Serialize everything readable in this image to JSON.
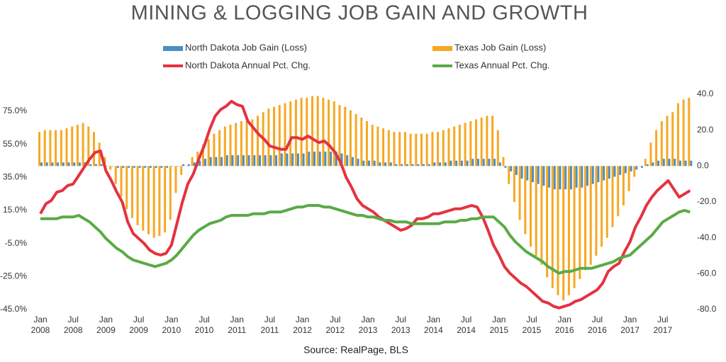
{
  "chart_data": {
    "type": "combo",
    "title": "MINING & LOGGING JOB GAIN AND GROWTH",
    "source": "Source: RealPage, BLS",
    "categories": [
      "Jan 2008",
      null,
      null,
      null,
      null,
      null,
      "Jul 2008",
      null,
      null,
      null,
      null,
      null,
      "Jan 2009",
      null,
      null,
      null,
      null,
      null,
      "Jul 2009",
      null,
      null,
      null,
      null,
      null,
      "Jan 2010",
      null,
      null,
      null,
      null,
      null,
      "Jul 2010",
      null,
      null,
      null,
      null,
      null,
      "Jan 2011",
      null,
      null,
      null,
      null,
      null,
      "Jul 2011",
      null,
      null,
      null,
      null,
      null,
      "Jan 2012",
      null,
      null,
      null,
      null,
      null,
      "Jul 2012",
      null,
      null,
      null,
      null,
      null,
      "Jan 2013",
      null,
      null,
      null,
      null,
      null,
      "Jul 2013",
      null,
      null,
      null,
      null,
      null,
      "Jan 2014",
      null,
      null,
      null,
      null,
      null,
      "Jul 2014",
      null,
      null,
      null,
      null,
      null,
      "Jan 2015",
      null,
      null,
      null,
      null,
      null,
      "Jul 2015",
      null,
      null,
      null,
      null,
      null,
      "Jan 2016",
      null,
      null,
      null,
      null,
      null,
      "Jul 2016",
      null,
      null,
      null,
      null,
      null,
      "Jan 2017",
      null,
      null,
      null,
      null,
      null,
      "Jul 2017",
      null,
      null,
      null,
      null,
      null
    ],
    "series": [
      {
        "name": "North Dakota Job Gain (Loss)",
        "type": "bar",
        "axis": "y2",
        "color": "#4a8fc4",
        "values": [
          2,
          2,
          2,
          2,
          2,
          2,
          2,
          2,
          2,
          1,
          1,
          1,
          0,
          0,
          -1,
          -1,
          -1,
          -1,
          -1,
          -1,
          -1,
          -1,
          -1,
          -1,
          0,
          0,
          1,
          1,
          2,
          3,
          4,
          5,
          5,
          5,
          6,
          6,
          6,
          6,
          6,
          6,
          6,
          6,
          6,
          6,
          7,
          7,
          7,
          7,
          7,
          8,
          8,
          8,
          8,
          8,
          8,
          7,
          6,
          5,
          4,
          3,
          3,
          3,
          2,
          2,
          2,
          1,
          1,
          1,
          1,
          1,
          1,
          1,
          2,
          2,
          2,
          3,
          3,
          3,
          3,
          4,
          4,
          4,
          4,
          4,
          2,
          -1,
          -3,
          -5,
          -7,
          -8,
          -9,
          -10,
          -11,
          -12,
          -13,
          -13,
          -13,
          -13,
          -12,
          -12,
          -11,
          -10,
          -9,
          -8,
          -7,
          -6,
          -5,
          -4,
          -3,
          -2,
          -1,
          1,
          2,
          3,
          4,
          4,
          4,
          3,
          3,
          3
        ]
      },
      {
        "name": "Texas Job Gain (Loss)",
        "type": "bar",
        "axis": "y2",
        "color": "#f6a823",
        "values": [
          19,
          20,
          20,
          20,
          20,
          21,
          22,
          23,
          24,
          22,
          19,
          13,
          5,
          -2,
          -10,
          -17,
          -24,
          -29,
          -33,
          -36,
          -38,
          -40,
          -39,
          -37,
          -30,
          -15,
          -5,
          0,
          5,
          8,
          12,
          15,
          18,
          20,
          22,
          23,
          24,
          25,
          25,
          26,
          28,
          30,
          32,
          33,
          34,
          35,
          36,
          37,
          38,
          38,
          39,
          39,
          38,
          37,
          36,
          34,
          33,
          31,
          29,
          27,
          25,
          23,
          22,
          21,
          20,
          19,
          19,
          19,
          18,
          18,
          18,
          18,
          19,
          19,
          20,
          21,
          22,
          23,
          24,
          25,
          26,
          27,
          28,
          28,
          20,
          5,
          -10,
          -20,
          -30,
          -38,
          -45,
          -50,
          -55,
          -62,
          -68,
          -72,
          -75,
          -72,
          -68,
          -63,
          -58,
          -55,
          -50,
          -45,
          -40,
          -34,
          -28,
          -22,
          -14,
          -6,
          0,
          4,
          13,
          20,
          25,
          28,
          30,
          35,
          37,
          38
        ]
      },
      {
        "name": "North Dakota Annual Pct. Chg.",
        "type": "line",
        "color": "#e5323f",
        "values": [
          13,
          19,
          21,
          26,
          27,
          30,
          31,
          36,
          41,
          46,
          50,
          51,
          39,
          33,
          26,
          20,
          8,
          1,
          -2,
          -5,
          -9,
          -11,
          -12,
          -11,
          -6,
          7,
          20,
          31,
          37,
          46,
          54,
          64,
          72,
          76,
          78,
          81,
          79,
          78,
          69,
          65,
          61,
          58,
          54,
          53,
          52,
          52,
          59,
          59,
          58,
          60,
          58,
          56,
          57,
          54,
          50,
          44,
          35,
          29,
          22,
          18,
          16,
          14,
          11,
          9,
          7,
          5,
          3,
          4,
          6,
          10,
          10,
          11,
          13,
          13,
          14,
          15,
          16,
          16,
          17,
          18,
          17,
          11,
          3,
          -6,
          -12,
          -19,
          -23,
          -26,
          -29,
          -31,
          -34,
          -37,
          -40,
          -41,
          -43,
          -44,
          -43,
          -42,
          -40,
          -39,
          -37,
          -35,
          -33,
          -29,
          -22,
          -19,
          -17,
          -10,
          -4,
          5,
          11,
          18,
          23,
          27,
          30,
          33,
          28,
          23,
          25,
          27
        ]
      },
      {
        "name": "Texas Annual Pct. Chg.",
        "type": "line",
        "color": "#5aaa46",
        "values": [
          10,
          10,
          10,
          10,
          11,
          11,
          11,
          12,
          10,
          8,
          5,
          2,
          -2,
          -5,
          -8,
          -10,
          -13,
          -15,
          -16,
          -17,
          -18,
          -19,
          -18,
          -17,
          -15,
          -12,
          -8,
          -4,
          0,
          3,
          5,
          7,
          8,
          9,
          11,
          12,
          12,
          12,
          12,
          13,
          13,
          13,
          14,
          14,
          14,
          15,
          16,
          17,
          17,
          18,
          18,
          18,
          17,
          17,
          16,
          15,
          14,
          13,
          12,
          12,
          11,
          11,
          10,
          9,
          9,
          8,
          8,
          8,
          7,
          7,
          7,
          7,
          7,
          7,
          8,
          8,
          8,
          9,
          9,
          10,
          10,
          11,
          11,
          11,
          8,
          5,
          0,
          -4,
          -7,
          -10,
          -12,
          -14,
          -16,
          -19,
          -21,
          -23,
          -22,
          -22,
          -21,
          -20,
          -20,
          -20,
          -19,
          -18,
          -17,
          -16,
          -14,
          -13,
          -12,
          -9,
          -6,
          -3,
          0,
          4,
          8,
          10,
          12,
          14,
          15,
          14
        ]
      }
    ],
    "ylim": [
      -45,
      75
    ],
    "yticks": [
      {
        "value": -45,
        "label": "-45.0%"
      },
      {
        "value": -25,
        "label": "-25.0%"
      },
      {
        "value": -5,
        "label": "-5.0%"
      },
      {
        "value": 15,
        "label": "15.0%"
      },
      {
        "value": 35,
        "label": "35.0%"
      },
      {
        "value": 55,
        "label": "55.0%"
      },
      {
        "value": 75,
        "label": "75.0%"
      }
    ],
    "y2lim": [
      -80,
      40
    ],
    "y2ticks": [
      {
        "value": -80,
        "label": "-80.0"
      },
      {
        "value": -60,
        "label": "-60.0"
      },
      {
        "value": -40,
        "label": "-40.0"
      },
      {
        "value": -20,
        "label": "-20.0"
      },
      {
        "value": 0,
        "label": "0.0"
      },
      {
        "value": 20,
        "label": "20.0"
      },
      {
        "value": 40,
        "label": "40.0"
      }
    ],
    "grid": false
  }
}
